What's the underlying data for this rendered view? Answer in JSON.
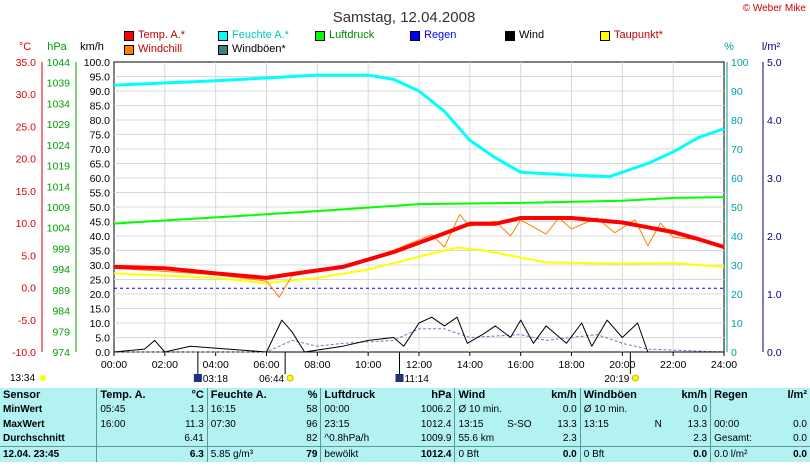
{
  "title": "Samstag, 12.04.2008",
  "copyright": "© Weber Mike",
  "axis_units": {
    "temp": "°C",
    "pressure": "hPa",
    "speed": "km/h",
    "humidity": "%",
    "radiation": "l/m²"
  },
  "legend": [
    {
      "label": "Temp. A.*",
      "color": "#ff0000"
    },
    {
      "label": "Feuchte A.*",
      "color": "#00ffff"
    },
    {
      "label": "Luftdruck",
      "color": "#00ff00"
    },
    {
      "label": "Regen",
      "color": "#0000ff"
    },
    {
      "label": "Wind",
      "color": "#000000"
    },
    {
      "label": "Taupunkt*",
      "color": "#ffff00"
    },
    {
      "label": "Windchill",
      "color": "#ff8000"
    },
    {
      "label": "Windböen*",
      "color": "#408080"
    }
  ],
  "time_ticks": [
    "00:00",
    "02:00",
    "04:00",
    "06:00",
    "08:00",
    "10:00",
    "12:00",
    "14:00",
    "16:00",
    "18:00",
    "20:00",
    "22:00",
    "24:00"
  ],
  "temp_ticks": [
    "35.0",
    "30.0",
    "25.0",
    "20.0",
    "15.0",
    "10.0",
    "5.0",
    "0.0",
    "-5.0",
    "-10.0"
  ],
  "pressure_ticks": [
    "1044",
    "1039",
    "1034",
    "1029",
    "1024",
    "1019",
    "1014",
    "1009",
    "1004",
    "999",
    "994",
    "989",
    "984",
    "979",
    "974"
  ],
  "speed_ticks": [
    "100.0",
    "95.0",
    "90.0",
    "85.0",
    "80.0",
    "75.0",
    "70.0",
    "65.0",
    "60.0",
    "55.0",
    "50.0",
    "45.0",
    "40.0",
    "35.0",
    "30.0",
    "25.0",
    "20.0",
    "15.0",
    "10.0",
    "5.0",
    "0.0"
  ],
  "humidity_ticks": [
    "100",
    "90",
    "80",
    "70",
    "60",
    "50",
    "40",
    "30",
    "20",
    "10",
    "0"
  ],
  "radiation_ticks": [
    "5.0",
    "4.0",
    "3.0",
    "2.0",
    "1.0",
    "0.0"
  ],
  "sun_events": [
    {
      "label": "03:18",
      "icon": "moon-icon"
    },
    {
      "label": "06:44",
      "icon": "sun-icon"
    },
    {
      "label": "11:14",
      "icon": "moon-icon"
    },
    {
      "label": "20:19",
      "icon": "sun-icon"
    }
  ],
  "update_time": "13:34",
  "chart_data": {
    "type": "line",
    "x_unit": "hour of day",
    "xlim": [
      0,
      24
    ],
    "series": [
      {
        "name": "Temp. A.*",
        "axis": "°C",
        "values": [
          [
            0,
            3.2
          ],
          [
            2,
            3.0
          ],
          [
            4,
            2.2
          ],
          [
            6,
            1.5
          ],
          [
            7,
            2.1
          ],
          [
            9,
            3.2
          ],
          [
            11,
            5.5
          ],
          [
            13,
            8.4
          ],
          [
            14,
            9.9
          ],
          [
            15,
            9.9
          ],
          [
            16,
            10.8
          ],
          [
            18,
            10.8
          ],
          [
            20,
            10.1
          ],
          [
            22,
            8.6
          ],
          [
            23,
            7.5
          ],
          [
            24,
            6.3
          ]
        ]
      },
      {
        "name": "Feuchte A.*",
        "axis": "%",
        "values": [
          [
            0,
            92
          ],
          [
            4,
            93.5
          ],
          [
            8,
            95.5
          ],
          [
            10,
            95.5
          ],
          [
            11,
            94
          ],
          [
            12,
            90
          ],
          [
            13,
            83
          ],
          [
            14,
            73
          ],
          [
            15,
            67
          ],
          [
            16,
            62
          ],
          [
            18,
            61
          ],
          [
            19.5,
            60.5
          ],
          [
            21,
            65
          ],
          [
            22,
            69
          ],
          [
            23,
            74
          ],
          [
            24,
            77
          ]
        ]
      },
      {
        "name": "Luftdruck",
        "axis": "hPa",
        "values": [
          [
            0,
            1005
          ],
          [
            4,
            1006.5
          ],
          [
            8,
            1008
          ],
          [
            12,
            1009.7
          ],
          [
            16,
            1010
          ],
          [
            20,
            1010.5
          ],
          [
            22,
            1011.2
          ],
          [
            24,
            1011.4
          ]
        ]
      },
      {
        "name": "Taupunkt*",
        "axis": "°C",
        "values": [
          [
            0,
            2.2
          ],
          [
            4,
            1.5
          ],
          [
            6,
            0.7
          ],
          [
            8,
            1.5
          ],
          [
            10,
            2.8
          ],
          [
            12,
            4.8
          ],
          [
            13.5,
            6.2
          ],
          [
            14.5,
            5.8
          ],
          [
            17,
            3.9
          ],
          [
            20,
            3.7
          ],
          [
            22,
            3.8
          ],
          [
            24,
            3.2
          ]
        ]
      },
      {
        "name": "Windchill",
        "axis": "°C",
        "values": [
          [
            0,
            3.0
          ],
          [
            4,
            2.0
          ],
          [
            6,
            1.0
          ],
          [
            6.5,
            -1.5
          ],
          [
            7,
            1.8
          ],
          [
            9,
            3.3
          ],
          [
            11,
            5.8
          ],
          [
            12.5,
            8.2
          ],
          [
            13,
            6.3
          ],
          [
            13.6,
            11.3
          ],
          [
            14,
            9.5
          ],
          [
            15,
            10.3
          ],
          [
            15.6,
            8.0
          ],
          [
            16,
            10.5
          ],
          [
            17,
            8.3
          ],
          [
            17.5,
            10.8
          ],
          [
            18,
            9.1
          ],
          [
            19,
            10.8
          ],
          [
            19.7,
            8.5
          ],
          [
            20.5,
            10.5
          ],
          [
            21,
            6.5
          ],
          [
            21.5,
            10.0
          ],
          [
            22,
            7.8
          ],
          [
            23,
            7.4
          ],
          [
            24,
            6.2
          ]
        ]
      },
      {
        "name": "Wind",
        "axis": "km/h",
        "values": [
          [
            0,
            0
          ],
          [
            1.2,
            1
          ],
          [
            1.6,
            4
          ],
          [
            2,
            0
          ],
          [
            3,
            2
          ],
          [
            6,
            0
          ],
          [
            6.6,
            11
          ],
          [
            7,
            7
          ],
          [
            7.5,
            0
          ],
          [
            9,
            2
          ],
          [
            10,
            4
          ],
          [
            11,
            5
          ],
          [
            11.4,
            2
          ],
          [
            12,
            10
          ],
          [
            12.5,
            12
          ],
          [
            13,
            9
          ],
          [
            13.5,
            12
          ],
          [
            13.9,
            3
          ],
          [
            14.5,
            6
          ],
          [
            15,
            9
          ],
          [
            15.6,
            5
          ],
          [
            16,
            11
          ],
          [
            16.5,
            3
          ],
          [
            17,
            9
          ],
          [
            17.4,
            6
          ],
          [
            17.8,
            3
          ],
          [
            18.4,
            10
          ],
          [
            18.8,
            2
          ],
          [
            19.4,
            11
          ],
          [
            20,
            5
          ],
          [
            20.6,
            10
          ],
          [
            21,
            0
          ],
          [
            24,
            0
          ]
        ]
      },
      {
        "name": "Windböen*",
        "axis": "km/h",
        "values": [
          [
            0,
            0
          ],
          [
            6,
            0
          ],
          [
            7,
            4
          ],
          [
            8,
            2
          ],
          [
            9,
            3
          ],
          [
            11,
            4
          ],
          [
            12,
            8
          ],
          [
            13,
            8
          ],
          [
            14,
            5
          ],
          [
            16,
            6
          ],
          [
            17,
            4
          ],
          [
            18,
            5
          ],
          [
            19,
            6
          ],
          [
            20,
            3
          ],
          [
            21,
            1
          ],
          [
            24,
            0
          ]
        ]
      },
      {
        "name": "Regen",
        "axis": "l/m²",
        "values": [
          [
            0,
            1.1
          ],
          [
            24,
            1.1
          ]
        ]
      }
    ]
  },
  "stats": {
    "headers": {
      "sensor": "Sensor",
      "temp": "Temp. A.",
      "temp_unit": "°C",
      "hum": "Feuchte A.",
      "hum_unit": "%",
      "press": "Luftdruck",
      "press_unit": "hPa",
      "wind": "Wind",
      "wind_unit": "km/h",
      "gust": "Windböen",
      "gust_unit": "km/h",
      "rain": "Regen",
      "rain_unit": "l/m²"
    },
    "rows": [
      {
        "label": "MinWert",
        "t_time": "05:45",
        "t_val": "1.3",
        "h_time": "16:15",
        "h_val": "58",
        "p_time": "00:00",
        "p_val": "1006.2",
        "w_label": "Ø 10 min.",
        "w_val": "0.0",
        "g_label": "Ø 10 min.",
        "g_val": "0.0",
        "r_label": "",
        "r_val": ""
      },
      {
        "label": "MaxWert",
        "t_time": "16:00",
        "t_val": "11.3",
        "h_time": "07:30",
        "h_val": "96",
        "p_time": "23:15",
        "p_val": "1012.4",
        "w_label": "13:15",
        "w_dir": "S-SO",
        "w_val": "13.3",
        "g_label": "13:15",
        "g_dir": "N",
        "g_val": "13.3",
        "r_label": "00:00",
        "r_val": "0.0"
      },
      {
        "label": "Durchschnitt",
        "t_time": "",
        "t_val": "6.41",
        "h_time": "",
        "h_val": "82",
        "p_time": "^0.8hPa/h",
        "p_val": "1009.9",
        "w_label": "55.6 km",
        "w_val": "2.3",
        "g_label": "",
        "g_val": "2.3",
        "r_label": "Gesamt:",
        "r_val": "0.0"
      },
      {
        "label": "12.04. 23:45",
        "t_time": "",
        "t_val": "6.3",
        "h_time": "5.85 g/m³",
        "h_val": "79",
        "p_time": "bewölkt",
        "p_val": "1012.4",
        "w_label": "0 Bft",
        "w_val": "0.0",
        "g_label": "0 Bft",
        "g_val": "0.0",
        "r_label": "0.0 l/m²",
        "r_val": "0.0"
      }
    ]
  }
}
